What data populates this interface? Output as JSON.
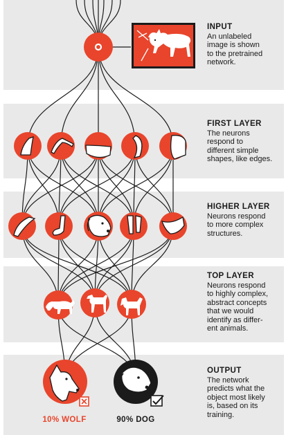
{
  "sections": [
    {
      "key": "input",
      "title": "INPUT",
      "body": "An unlabeled\nimage is shown\nto the pretrained\nnetwork."
    },
    {
      "key": "first",
      "title": "FIRST LAYER",
      "body": "The neurons\nrespond to\ndifferent simple\nshapes, like edges."
    },
    {
      "key": "higher",
      "title": "HIGHER LAYER",
      "body": "Neurons respond\nto more complex\nstructures."
    },
    {
      "key": "top",
      "title": "TOP LAYER",
      "body": "Neurons respond\nto highly complex,\nabstract concepts\nthat we would\nidentify as differ-\nent animals."
    },
    {
      "key": "output",
      "title": "OUTPUT",
      "body": "The network\npredicts what the\nobject most likely\nis, based on its\ntraining."
    }
  ],
  "results": {
    "wolf_label": "10% WOLF",
    "dog_label": "90% DOG"
  },
  "colors": {
    "accent": "#e8452c",
    "dark": "#1b1b1b",
    "band": "#e9e9e9"
  },
  "icons": {
    "input_node": "input-node-icon",
    "input_image": "dog-photo-icon",
    "first_layer": [
      "edge-shape-1-icon",
      "edge-shape-2-icon",
      "edge-shape-3-icon",
      "edge-shape-4-icon",
      "edge-shape-5-icon"
    ],
    "higher_layer": [
      "ear-structure-icon",
      "paw-structure-icon",
      "dog-face-icon",
      "legs-structure-icon",
      "body-curve-icon"
    ],
    "top_layer": [
      "wolf-animal-icon",
      "dog-animal-icon",
      "horse-animal-icon"
    ],
    "output": [
      "wolf-head-icon",
      "dog-head-icon",
      "cross-box-icon",
      "check-box-icon"
    ]
  }
}
